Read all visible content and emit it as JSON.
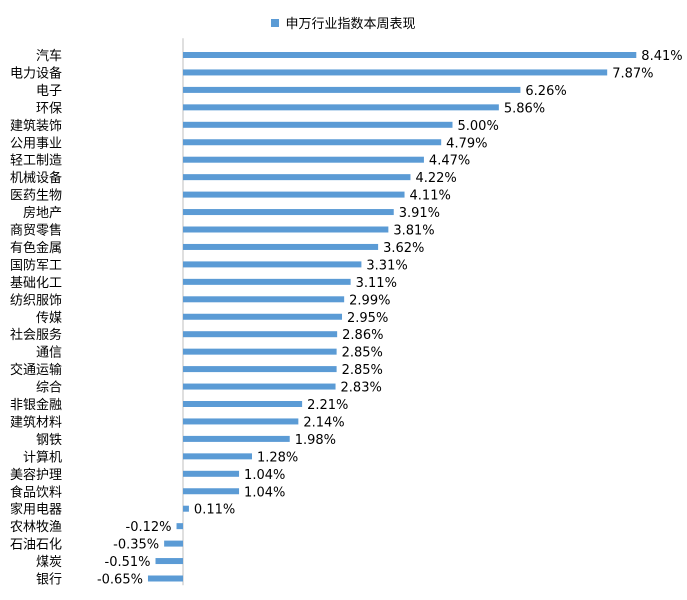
{
  "colors": {
    "bar": "#5B9BD5",
    "axis": "#BFBFBF"
  },
  "chart_data": {
    "type": "bar",
    "orientation": "horizontal",
    "series": [
      {
        "name": "申万行业指数本周表现",
        "values": [
          8.41,
          7.87,
          6.26,
          5.86,
          5.0,
          4.79,
          4.47,
          4.22,
          4.11,
          3.91,
          3.81,
          3.62,
          3.31,
          3.11,
          2.99,
          2.95,
          2.86,
          2.85,
          2.85,
          2.83,
          2.21,
          2.14,
          1.98,
          1.28,
          1.04,
          1.04,
          0.11,
          -0.12,
          -0.35,
          -0.51,
          -0.65
        ]
      }
    ],
    "categories": [
      "汽车",
      "电力设备",
      "电子",
      "环保",
      "建筑装饰",
      "公用事业",
      "轻工制造",
      "机械设备",
      "医药生物",
      "房地产",
      "商贸零售",
      "有色金属",
      "国防军工",
      "基础化工",
      "纺织服饰",
      "传媒",
      "社会服务",
      "通信",
      "交通运输",
      "综合",
      "非银金融",
      "建筑材料",
      "钢铁",
      "计算机",
      "美容护理",
      "食品饮料",
      "家用电器",
      "农林牧渔",
      "石油石化",
      "煤炭",
      "银行"
    ],
    "data_labels": [
      "8.41%",
      "7.87%",
      "6.26%",
      "5.86%",
      "5.00%",
      "4.79%",
      "4.47%",
      "4.22%",
      "4.11%",
      "3.91%",
      "3.81%",
      "3.62%",
      "3.31%",
      "3.11%",
      "2.99%",
      "2.95%",
      "2.86%",
      "2.85%",
      "2.85%",
      "2.83%",
      "2.21%",
      "2.14%",
      "1.98%",
      "1.28%",
      "1.04%",
      "1.04%",
      "0.11%",
      "-0.12%",
      "-0.35%",
      "-0.51%",
      "-0.65%"
    ],
    "value_unit": "%",
    "legend_position": "top",
    "grid": false
  }
}
